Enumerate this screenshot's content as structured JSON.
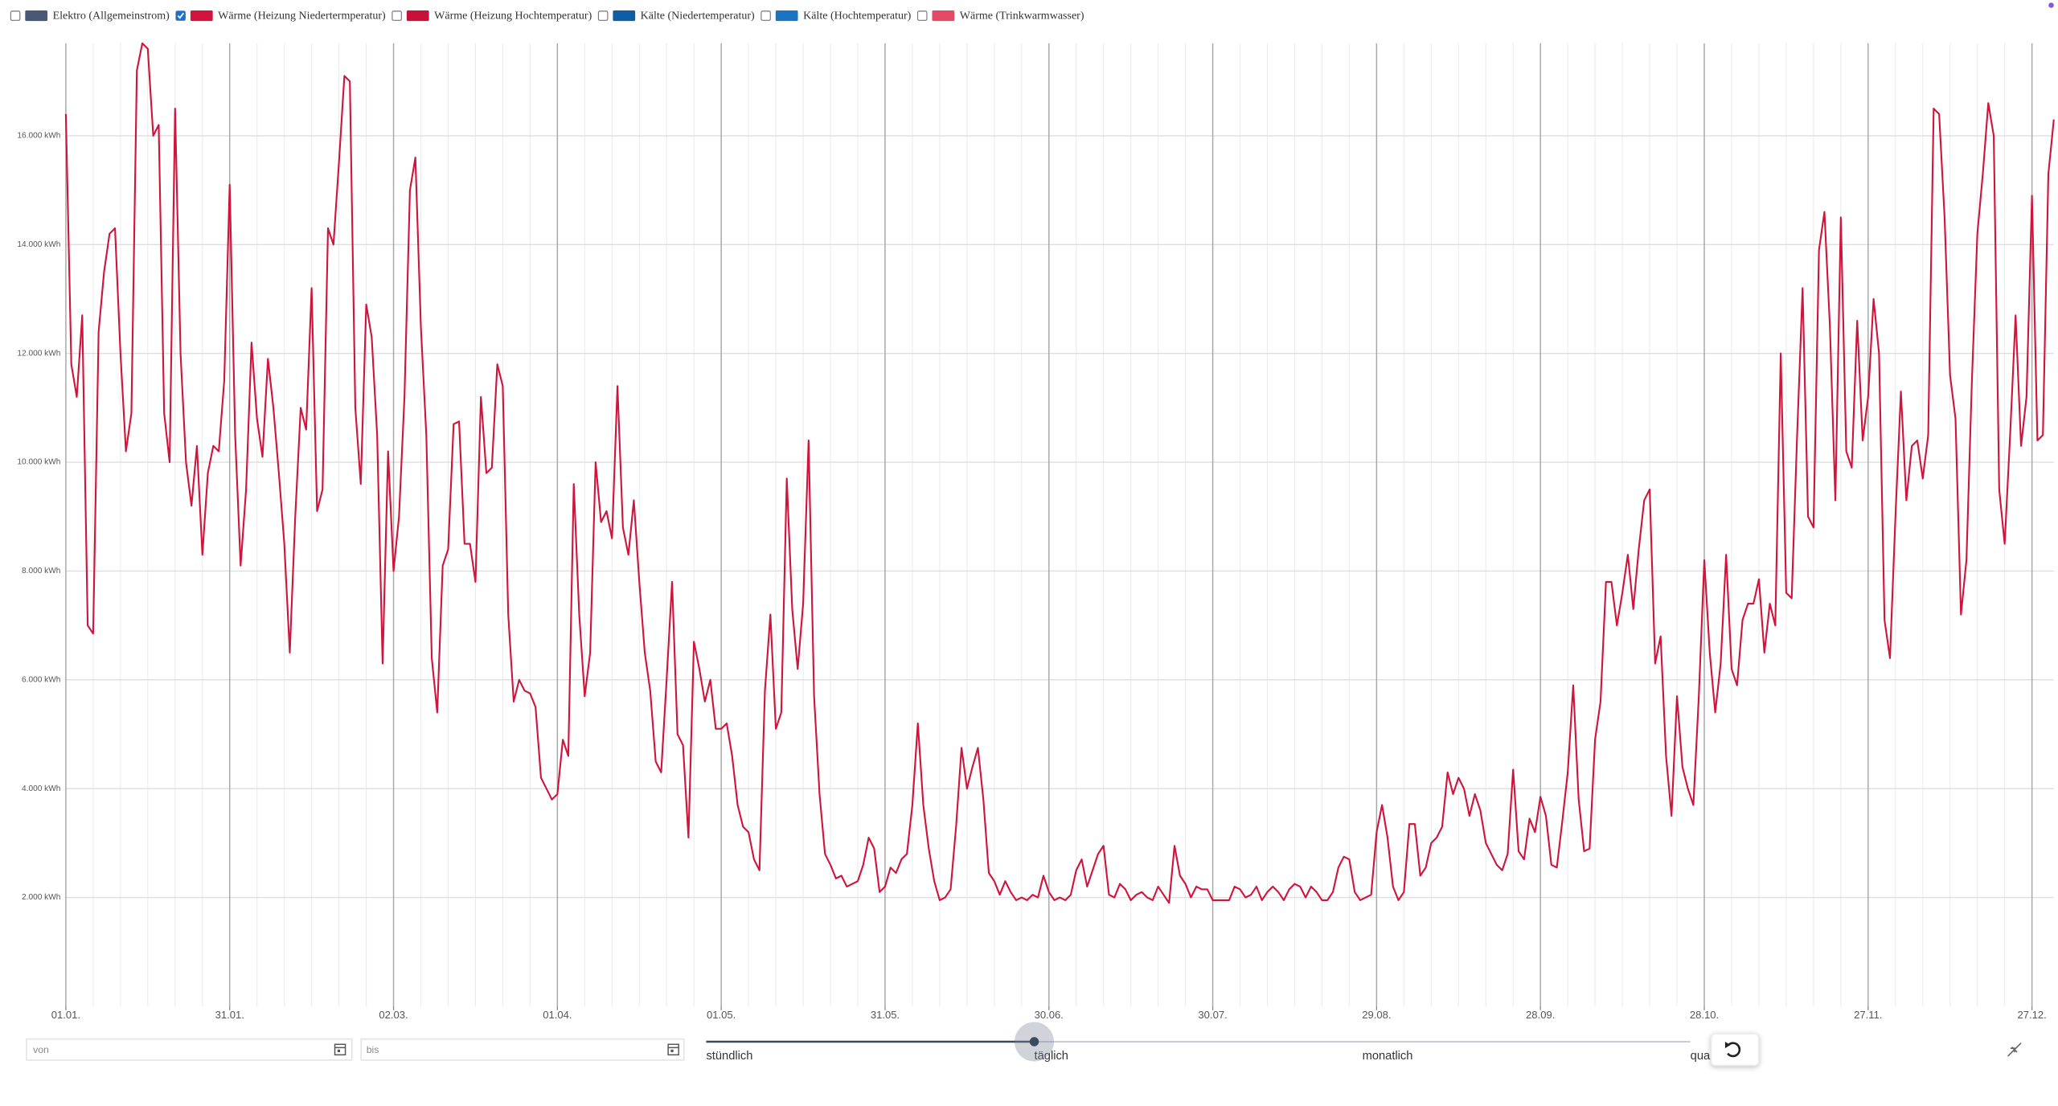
{
  "chart_data": {
    "type": "line",
    "series": [
      {
        "name": "Elektro (Allgemeinstrom)",
        "color": "#4a5878",
        "visible": false
      },
      {
        "name": "Wärme (Heizung Niedertermperatur)",
        "color": "#d0143c",
        "visible": true,
        "values": [
          16400,
          11800,
          11200,
          12700,
          7000,
          6850,
          12400,
          13500,
          14200,
          14300,
          12000,
          10200,
          10900,
          17200,
          17700,
          17600,
          16000,
          16200,
          10900,
          10000,
          16500,
          12000,
          10000,
          9200,
          10300,
          8300,
          9800,
          10300,
          10200,
          11500,
          15100,
          10500,
          8100,
          9500,
          12200,
          10800,
          10100,
          11900,
          11000,
          9800,
          8500,
          6500,
          9000,
          11000,
          10600,
          13200,
          9100,
          9500,
          14300,
          14000,
          15500,
          17100,
          17000,
          11000,
          9600,
          12900,
          12300,
          10500,
          6300,
          10200,
          8000,
          9000,
          11200,
          15000,
          15600,
          12500,
          10500,
          6400,
          5400,
          8100,
          8400,
          10700,
          10750,
          8500,
          8500,
          7800,
          11200,
          9800,
          9900,
          11800,
          11400,
          7200,
          5600,
          6000,
          5800,
          5750,
          5500,
          4200,
          4000,
          3800,
          3900,
          4900,
          4600,
          9600,
          7200,
          5700,
          6500,
          10000,
          8900,
          9100,
          8600,
          11400,
          8800,
          8300,
          9300,
          7800,
          6500,
          5800,
          4500,
          4300,
          6000,
          7800,
          5000,
          4800,
          3100,
          6700,
          6200,
          5600,
          6000,
          5100,
          5100,
          5200,
          4600,
          3700,
          3300,
          3200,
          2700,
          2500,
          5800,
          7200,
          5100,
          5400,
          9700,
          7300,
          6200,
          7400,
          10400,
          5700,
          3900,
          2800,
          2600,
          2350,
          2400,
          2200,
          2250,
          2300,
          2600,
          3100,
          2900,
          2100,
          2200,
          2550,
          2450,
          2700,
          2800,
          3700,
          5200,
          3700,
          2900,
          2300,
          1950,
          2000,
          2150,
          3300,
          4750,
          4000,
          4400,
          4750,
          3800,
          2450,
          2300,
          2050,
          2300,
          2100,
          1950,
          2000,
          1950,
          2050,
          2000,
          2400,
          2100,
          1950,
          2000,
          1950,
          2050,
          2500,
          2700,
          2200,
          2500,
          2800,
          2950,
          2050,
          2000,
          2250,
          2150,
          1950,
          2050,
          2100,
          2000,
          1950,
          2200,
          2050,
          1900,
          2950,
          2400,
          2250,
          2000,
          2200,
          2150,
          2150,
          1950,
          1950,
          1950,
          1950,
          2200,
          2150,
          2000,
          2050,
          2200,
          1950,
          2100,
          2200,
          2100,
          1950,
          2150,
          2250,
          2200,
          2000,
          2200,
          2100,
          1950,
          1950,
          2100,
          2550,
          2750,
          2700,
          2100,
          1950,
          2000,
          2050,
          3200,
          3700,
          3100,
          2200,
          1950,
          2100,
          3350,
          3350,
          2400,
          2550,
          3000,
          3100,
          3300,
          4300,
          3900,
          4200,
          4000,
          3500,
          3900,
          3600,
          3000,
          2800,
          2600,
          2500,
          2800,
          4350,
          2850,
          2700,
          3450,
          3200,
          3850,
          3500,
          2600,
          2550,
          3400,
          4300,
          5900,
          3800,
          2850,
          2900,
          4900,
          5600,
          7800,
          7800,
          7000,
          7600,
          8300,
          7300,
          8400,
          9300,
          9500,
          6300,
          6800,
          4600,
          3500,
          5700,
          4400,
          4000,
          3700,
          5700,
          8200,
          6500,
          5400,
          6300,
          8300,
          6200,
          5900,
          7100,
          7400,
          7400,
          7850,
          6500,
          7400,
          7000,
          12000,
          7600,
          7500,
          10500,
          13200,
          9000,
          8800,
          13900,
          14600,
          12500,
          9300,
          14500,
          10200,
          9900,
          12600,
          10400,
          11200,
          13000,
          12000,
          7100,
          6400,
          9000,
          11300,
          9300,
          10300,
          10400,
          9700,
          10500,
          16500,
          16400,
          14500,
          11600,
          10800,
          7200,
          8200,
          11500,
          14200,
          15300,
          16600,
          16000,
          9500,
          8500,
          10500,
          12700,
          10300,
          11200,
          14900,
          10400,
          10500,
          15300,
          16300
        ]
      },
      {
        "name": "Wärme (Heizung Hochtemperatur)",
        "color": "#c8103a",
        "visible": false
      },
      {
        "name": "Kälte (Niedertemperatur)",
        "color": "#0d5ea6",
        "visible": false
      },
      {
        "name": "Kälte (Hochtemperatur)",
        "color": "#1b74c2",
        "visible": false
      },
      {
        "name": "Wärme (Trinkwarmwasser)",
        "color": "#e44a66",
        "visible": false
      }
    ],
    "xlim": [
      0,
      364
    ],
    "xticks": [
      {
        "value": 0,
        "label": "01.01."
      },
      {
        "value": 30,
        "label": "31.01."
      },
      {
        "value": 60,
        "label": "02.03."
      },
      {
        "value": 90,
        "label": "01.04."
      },
      {
        "value": 120,
        "label": "01.05."
      },
      {
        "value": 150,
        "label": "31.05."
      },
      {
        "value": 180,
        "label": "30.06."
      },
      {
        "value": 210,
        "label": "30.07."
      },
      {
        "value": 240,
        "label": "29.08."
      },
      {
        "value": 270,
        "label": "28.09."
      },
      {
        "value": 300,
        "label": "28.10."
      },
      {
        "value": 330,
        "label": "27.11."
      },
      {
        "value": 360,
        "label": "27.12."
      }
    ],
    "ylim": [
      0,
      17700
    ],
    "yticks": [
      {
        "value": 2000,
        "label": "2.000 kWh"
      },
      {
        "value": 4000,
        "label": "4.000 kWh"
      },
      {
        "value": 6000,
        "label": "6.000 kWh"
      },
      {
        "value": 8000,
        "label": "8.000 kWh"
      },
      {
        "value": 10000,
        "label": "10.000 kWh"
      },
      {
        "value": 12000,
        "label": "12.000 kWh"
      },
      {
        "value": 14000,
        "label": "14.000 kWh"
      },
      {
        "value": 16000,
        "label": "16.000 kWh"
      }
    ],
    "grid": true
  },
  "controls": {
    "from_placeholder": "von",
    "to_placeholder": "bis",
    "resolution_labels": [
      "stündlich",
      "täglich",
      "monatlich",
      "quar"
    ],
    "resolution_selected": 1
  }
}
